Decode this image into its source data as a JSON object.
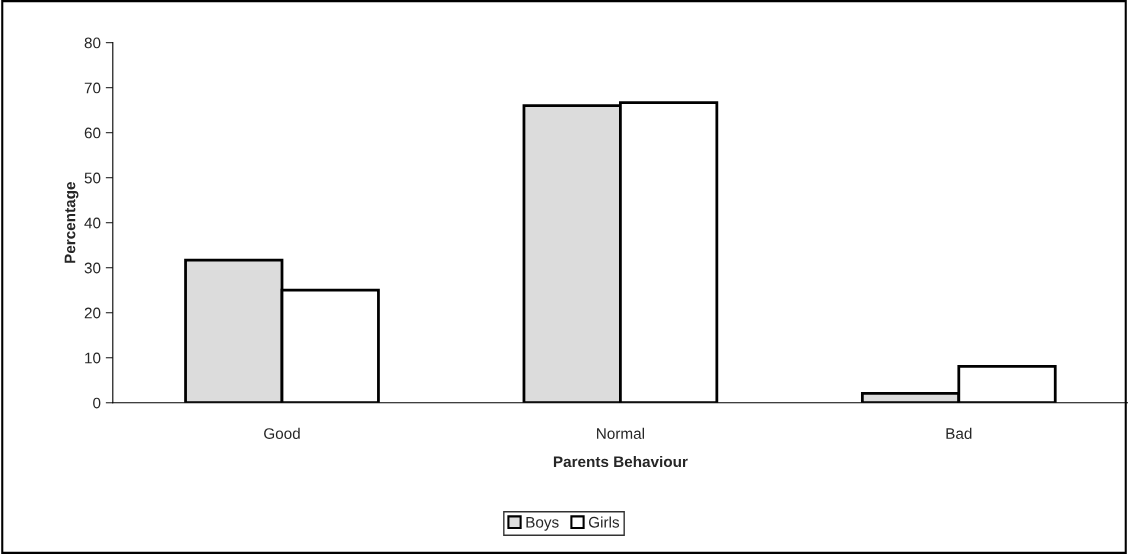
{
  "chart_data": {
    "type": "bar",
    "xlabel": "Parents Behaviour",
    "ylabel": "Percentage",
    "categories": [
      "Good",
      "Normal",
      "Bad"
    ],
    "series": [
      {
        "name": "Boys",
        "color": "#dcdcdc",
        "values": [
          31.7,
          66,
          2.1
        ]
      },
      {
        "name": "Girls",
        "color": "#ffffff",
        "values": [
          25,
          66.7,
          8.1
        ]
      }
    ],
    "ylim": [
      0,
      80
    ],
    "yticks": [
      0,
      10,
      20,
      30,
      40,
      50,
      60,
      70,
      80
    ],
    "grid": false,
    "legend": "bottom"
  }
}
